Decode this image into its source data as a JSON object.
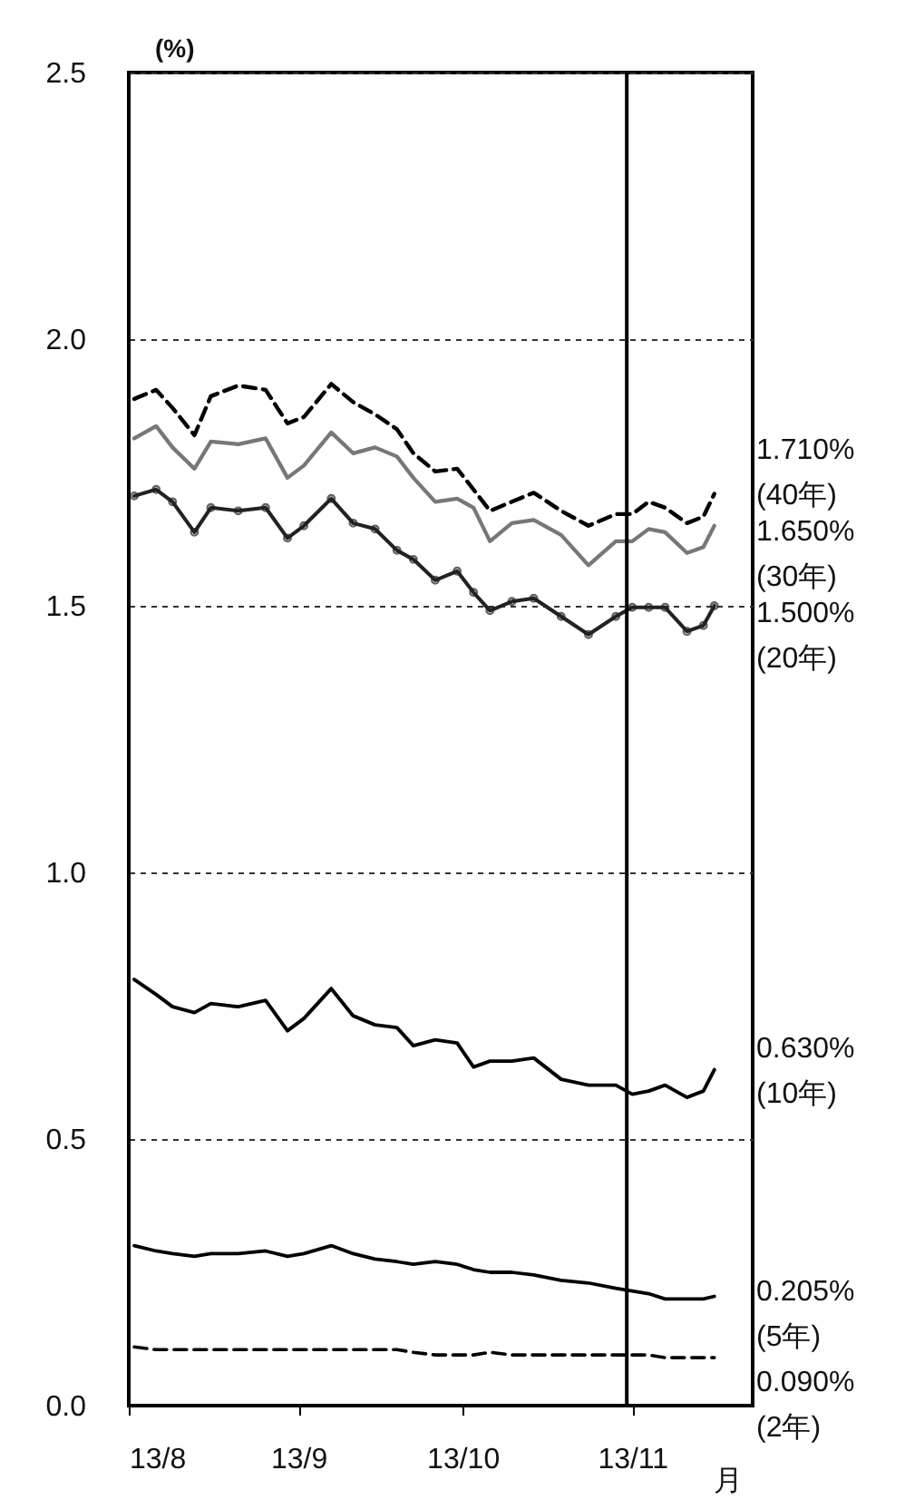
{
  "chart_data": {
    "type": "line",
    "ylabel": "(%)",
    "xlabel": "月",
    "x": [
      "--08-02",
      "--08-06",
      "--08-09",
      "--08-13",
      "--08-16",
      "--08-21",
      "--08-26",
      "--08-30",
      "--09-02",
      "--09-07",
      "--09-11",
      "--09-15",
      "--09-19",
      "--09-22",
      "--09-26",
      "--09-30",
      "--10-03",
      "--10-06",
      "--10-10",
      "--10-14",
      "--10-19",
      "--10-24",
      "--10-29",
      "--11-01",
      "--11-04",
      "--11-07",
      "--11-11",
      "--11-14",
      "--11-16"
    ],
    "series": [
      {
        "name": "(40年)",
        "color": "#000000",
        "line_style": "dashed",
        "values": [
          1.888,
          1.905,
          1.871,
          1.82,
          1.893,
          1.913,
          1.905,
          1.842,
          1.854,
          1.916,
          1.882,
          1.859,
          1.831,
          1.786,
          1.752,
          1.757,
          1.718,
          1.678,
          1.695,
          1.712,
          1.678,
          1.65,
          1.672,
          1.672,
          1.695,
          1.684,
          1.655,
          1.667,
          1.71
        ],
        "value_labels": [
          null,
          null,
          null,
          null,
          null,
          null,
          null,
          null,
          null,
          null,
          null,
          null,
          null,
          null,
          null,
          null,
          null,
          null,
          null,
          null,
          null,
          null,
          null,
          null,
          null,
          null,
          null,
          null,
          "1.710%"
        ]
      },
      {
        "name": "(30年)",
        "color": "#777777",
        "line_style": "solid",
        "values": [
          1.814,
          1.837,
          1.797,
          1.757,
          1.808,
          1.803,
          1.814,
          1.74,
          1.763,
          1.825,
          1.786,
          1.797,
          1.78,
          1.74,
          1.695,
          1.701,
          1.684,
          1.621,
          1.655,
          1.661,
          1.633,
          1.576,
          1.621,
          1.621,
          1.644,
          1.638,
          1.599,
          1.61,
          1.65
        ],
        "value_labels": [
          null,
          null,
          null,
          null,
          null,
          null,
          null,
          null,
          null,
          null,
          null,
          null,
          null,
          null,
          null,
          null,
          null,
          null,
          null,
          null,
          null,
          null,
          null,
          null,
          null,
          null,
          null,
          null,
          "1.650%"
        ]
      },
      {
        "name": "(20年)",
        "color": "#222222",
        "line_style": "solid",
        "marker": "circle",
        "values": [
          1.706,
          1.718,
          1.695,
          1.638,
          1.684,
          1.678,
          1.684,
          1.627,
          1.65,
          1.701,
          1.655,
          1.644,
          1.604,
          1.587,
          1.548,
          1.565,
          1.525,
          1.491,
          1.508,
          1.514,
          1.48,
          1.446,
          1.48,
          1.497,
          1.497,
          1.497,
          1.452,
          1.463,
          1.5
        ],
        "value_labels": [
          null,
          null,
          null,
          null,
          null,
          null,
          null,
          null,
          null,
          null,
          null,
          null,
          null,
          null,
          null,
          null,
          null,
          null,
          null,
          null,
          null,
          null,
          null,
          null,
          null,
          null,
          null,
          null,
          "1.500%"
        ]
      },
      {
        "name": "(10年)",
        "color": "#000000",
        "line_style": "solid",
        "values": [
          0.799,
          0.771,
          0.748,
          0.737,
          0.754,
          0.748,
          0.76,
          0.703,
          0.726,
          0.782,
          0.731,
          0.714,
          0.709,
          0.675,
          0.686,
          0.68,
          0.635,
          0.646,
          0.646,
          0.652,
          0.612,
          0.601,
          0.601,
          0.584,
          0.59,
          0.601,
          0.578,
          0.59,
          0.63
        ],
        "value_labels": [
          null,
          null,
          null,
          null,
          null,
          null,
          null,
          null,
          null,
          null,
          null,
          null,
          null,
          null,
          null,
          null,
          null,
          null,
          null,
          null,
          null,
          null,
          null,
          null,
          null,
          null,
          null,
          null,
          "0.630%"
        ]
      },
      {
        "name": "(5年)",
        "color": "#000000",
        "line_style": "solid",
        "values": [
          0.3,
          0.29,
          0.285,
          0.28,
          0.285,
          0.285,
          0.29,
          0.28,
          0.285,
          0.3,
          0.285,
          0.275,
          0.27,
          0.265,
          0.27,
          0.265,
          0.255,
          0.25,
          0.25,
          0.245,
          0.235,
          0.23,
          0.22,
          0.215,
          0.21,
          0.2,
          0.2,
          0.2,
          0.205
        ],
        "value_labels": [
          null,
          null,
          null,
          null,
          null,
          null,
          null,
          null,
          null,
          null,
          null,
          null,
          null,
          null,
          null,
          null,
          null,
          null,
          null,
          null,
          null,
          null,
          null,
          null,
          null,
          null,
          null,
          null,
          "0.205%"
        ]
      },
      {
        "name": "(2年)",
        "color": "#000000",
        "line_style": "dashed",
        "values": [
          0.11,
          0.105,
          0.105,
          0.105,
          0.105,
          0.105,
          0.105,
          0.105,
          0.105,
          0.105,
          0.105,
          0.105,
          0.105,
          0.1,
          0.095,
          0.095,
          0.095,
          0.1,
          0.095,
          0.095,
          0.095,
          0.095,
          0.095,
          0.095,
          0.095,
          0.09,
          0.09,
          0.09,
          0.09
        ],
        "value_labels": [
          null,
          null,
          null,
          null,
          null,
          null,
          null,
          null,
          null,
          null,
          null,
          null,
          null,
          null,
          null,
          null,
          null,
          null,
          null,
          null,
          null,
          null,
          null,
          null,
          null,
          null,
          null,
          null,
          "0.090%"
        ]
      }
    ],
    "xlim": [
      "--08-01",
      "--11-23"
    ],
    "xticks": [
      {
        "value": "--08-01",
        "label": "13/8"
      },
      {
        "value": "--09-01",
        "label": "13/9"
      },
      {
        "value": "--10-01",
        "label": "13/10"
      },
      {
        "value": "--11-01",
        "label": "13/11"
      }
    ],
    "ylim": [
      0,
      2.5
    ],
    "yticks": [
      {
        "value": 0,
        "label": "0.0"
      },
      {
        "value": 0.5,
        "label": "0.5"
      },
      {
        "value": 1,
        "label": "1.0"
      },
      {
        "value": 1.5,
        "label": "1.5"
      },
      {
        "value": 2,
        "label": "2.0"
      },
      {
        "value": 2.5,
        "label": "2.5"
      }
    ],
    "grid": "y",
    "ref_lines": [
      {
        "axis": "x",
        "value": "--10-31",
        "color": "#000000",
        "line_style": "solid"
      }
    ]
  }
}
